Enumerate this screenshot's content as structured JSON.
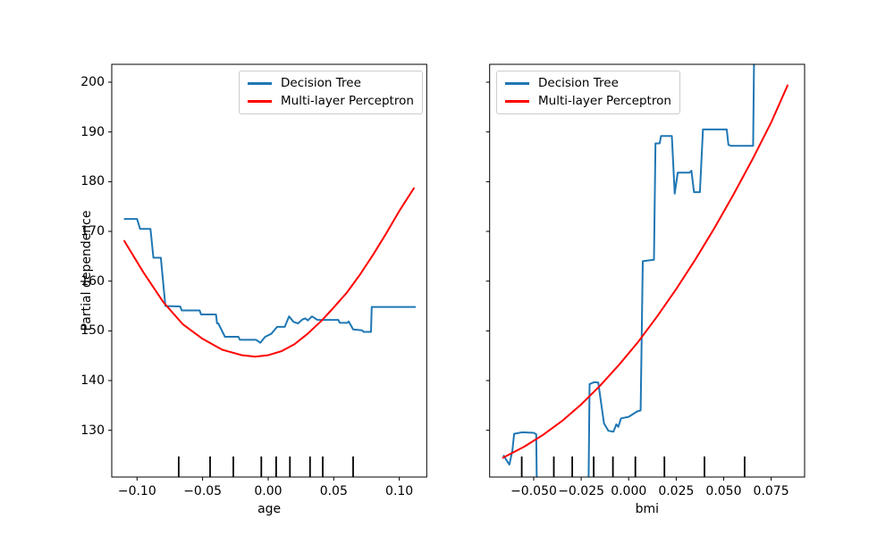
{
  "figure": {
    "background": "#ffffff"
  },
  "colors": {
    "decision_tree": "#1f77b4",
    "mlp": "#ff0000",
    "axis": "#000000",
    "legend_border": "#cccccc"
  },
  "ylabel": "Partial dependence",
  "legend": {
    "items": [
      {
        "label": "Decision Tree",
        "color_key": "decision_tree"
      },
      {
        "label": "Multi-layer Perceptron",
        "color_key": "mlp"
      }
    ]
  },
  "chart_data": [
    {
      "type": "line",
      "title": "",
      "xlabel": "age",
      "ylabel": "Partial dependence",
      "xlim": [
        -0.1193,
        0.1209
      ],
      "ylim": [
        120.6,
        203.6
      ],
      "grid": false,
      "legend_position": "upper right",
      "xticks": [
        -0.1,
        -0.05,
        0.0,
        0.05,
        0.1
      ],
      "xtick_labels": [
        "−0.10",
        "−0.05",
        "0.00",
        "0.05",
        "0.10"
      ],
      "yticks": [
        130,
        140,
        150,
        160,
        170,
        180,
        190,
        200
      ],
      "ytick_labels": [
        "130",
        "140",
        "150",
        "160",
        "170",
        "180",
        "190",
        "200"
      ],
      "show_ytick_labels": true,
      "rug_x": [
        -0.0682,
        -0.0443,
        -0.0266,
        -0.0052,
        0.0061,
        0.0166,
        0.0319,
        0.0416,
        0.0648
      ],
      "series": [
        {
          "name": "Decision Tree",
          "color_key": "decision_tree",
          "x": [
            -0.11,
            -0.1,
            -0.0977,
            -0.0898,
            -0.0875,
            -0.0819,
            -0.0784,
            -0.0671,
            -0.0659,
            -0.0523,
            -0.0512,
            -0.0398,
            -0.039,
            -0.038,
            -0.033,
            -0.0227,
            -0.0216,
            -0.0091,
            -0.006,
            -0.0023,
            0.0023,
            0.0068,
            0.0126,
            0.0159,
            0.0194,
            0.0228,
            0.0262,
            0.0284,
            0.0302,
            0.0334,
            0.0364,
            0.0375,
            0.0535,
            0.0546,
            0.0603,
            0.0614,
            0.0648,
            0.0716,
            0.0728,
            0.0784,
            0.079,
            0.1125
          ],
          "y": [
            172.5,
            172.5,
            170.5,
            170.5,
            164.7,
            164.7,
            155.0,
            154.9,
            154.1,
            154.1,
            153.3,
            153.3,
            151.5,
            151.5,
            148.8,
            148.8,
            148.2,
            148.2,
            147.6,
            148.8,
            149.4,
            150.8,
            150.8,
            152.9,
            151.8,
            151.5,
            152.3,
            152.5,
            152.1,
            152.9,
            152.4,
            152.2,
            152.2,
            151.6,
            151.6,
            151.9,
            150.3,
            150.1,
            149.8,
            149.8,
            154.8,
            154.8
          ]
        },
        {
          "name": "Multi-layer Perceptron",
          "color_key": "mlp",
          "x": [
            -0.11,
            -0.095,
            -0.08,
            -0.065,
            -0.05,
            -0.035,
            -0.02,
            -0.01,
            0.0,
            0.01,
            0.02,
            0.03,
            0.0409,
            0.05,
            0.06,
            0.07,
            0.08,
            0.09,
            0.1,
            0.1114
          ],
          "y": [
            168.2,
            161.7,
            155.8,
            151.3,
            148.4,
            146.2,
            145.1,
            144.8,
            145.1,
            145.9,
            147.3,
            149.4,
            152.1,
            154.7,
            157.7,
            161.3,
            165.3,
            169.6,
            174.1,
            178.8
          ]
        }
      ]
    },
    {
      "type": "line",
      "title": "",
      "xlabel": "bmi",
      "ylabel": "",
      "xlim": [
        -0.0732,
        0.0926
      ],
      "ylim": [
        120.6,
        203.6
      ],
      "grid": false,
      "legend_position": "upper left",
      "xticks": [
        -0.05,
        -0.025,
        0.0,
        0.025,
        0.05,
        0.075
      ],
      "xtick_labels": [
        "−0.050",
        "−0.025",
        "0.000",
        "0.025",
        "0.050",
        "0.075"
      ],
      "yticks": [
        130,
        140,
        150,
        160,
        170,
        180,
        190,
        200
      ],
      "ytick_labels": [],
      "show_ytick_labels": false,
      "rug_x": [
        -0.0563,
        -0.0394,
        -0.0297,
        -0.0184,
        -0.0083,
        0.0035,
        0.0188,
        0.0399,
        0.061
      ],
      "series": [
        {
          "name": "Decision Tree",
          "color_key": "decision_tree",
          "x": [
            -0.066,
            -0.064,
            -0.0628,
            -0.0612,
            -0.0603,
            -0.056,
            -0.05,
            -0.0487,
            -0.0483,
            -0.0212,
            -0.0206,
            -0.018,
            -0.016,
            -0.0145,
            -0.013,
            -0.0107,
            -0.008,
            -0.0065,
            -0.0055,
            -0.004,
            0.0,
            0.002,
            0.0045,
            0.0063,
            0.0074,
            0.0133,
            0.0141,
            0.0163,
            0.017,
            0.0227,
            0.0242,
            0.0258,
            0.032,
            0.033,
            0.0344,
            0.0375,
            0.0391,
            0.0516,
            0.0525,
            0.054,
            0.0655,
            0.066
          ],
          "y": [
            125.0,
            123.8,
            123.1,
            126.0,
            129.3,
            129.6,
            129.5,
            129.2,
            117.0,
            117.0,
            139.3,
            139.7,
            139.6,
            135.5,
            131.4,
            129.9,
            129.7,
            131.2,
            130.7,
            132.4,
            132.7,
            133.2,
            133.8,
            134.0,
            164.0,
            164.3,
            187.7,
            187.7,
            189.2,
            189.2,
            177.6,
            181.8,
            181.8,
            182.2,
            177.9,
            177.9,
            190.5,
            190.5,
            187.4,
            187.2,
            187.2,
            205.0
          ]
        },
        {
          "name": "Multi-layer Perceptron",
          "color_key": "mlp",
          "x": [
            -0.0665,
            -0.055,
            -0.045,
            -0.035,
            -0.025,
            -0.015,
            -0.005,
            0.005,
            0.015,
            0.025,
            0.035,
            0.045,
            0.055,
            0.065,
            0.075,
            0.0838
          ],
          "y": [
            124.4,
            126.7,
            129.1,
            131.9,
            135.2,
            139.0,
            143.2,
            147.8,
            152.9,
            158.4,
            164.3,
            170.6,
            177.3,
            184.4,
            191.9,
            199.5
          ]
        }
      ]
    }
  ]
}
